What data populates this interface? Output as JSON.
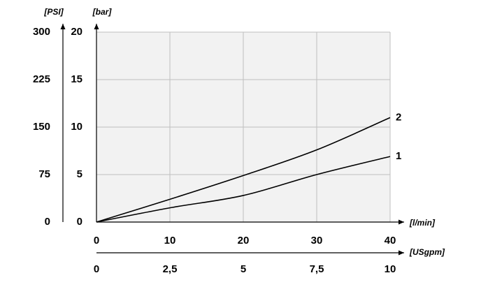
{
  "chart_data": {
    "type": "line",
    "x_label": "[l/min]",
    "y_label": "[bar]",
    "y2_label": "[PSI]",
    "x2_label": "[USgpm]",
    "x": [
      0,
      10,
      20,
      30,
      40
    ],
    "series": [
      {
        "name": "1",
        "color": "#000000",
        "values": [
          0,
          1.5,
          2.8,
          5.0,
          6.9
        ]
      },
      {
        "name": "2",
        "color": "#000000",
        "values": [
          0,
          2.4,
          4.9,
          7.6,
          11.0
        ]
      }
    ],
    "xlim": [
      0,
      40
    ],
    "xticks": [
      0,
      10,
      20,
      30,
      40
    ],
    "ylim": [
      0,
      20
    ],
    "yticks": [
      0,
      5,
      10,
      15,
      20
    ],
    "y2lim": [
      0,
      300
    ],
    "y2ticks": [
      0,
      75,
      150,
      225,
      300
    ],
    "x2lim": [
      0,
      10
    ],
    "x2ticks": [
      0,
      {
        "value": 2.5,
        "label": "2,5"
      },
      5,
      {
        "value": 7.5,
        "label": "7,5"
      },
      10
    ],
    "grid": true
  }
}
